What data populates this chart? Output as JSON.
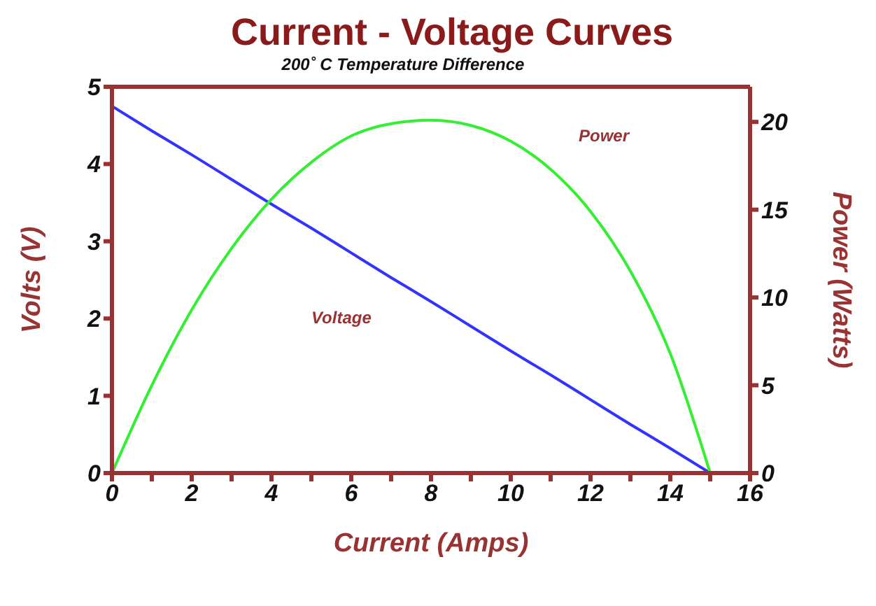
{
  "chart_data": {
    "type": "line",
    "title": "Current - Voltage Curves",
    "subtitle": "200˚ C Temperature Difference",
    "xlabel": "Current (Amps)",
    "ylabel": "Volts (V)",
    "y2label": "Power (Watts)",
    "x": [
      0,
      1,
      2,
      3,
      4,
      5,
      6,
      7,
      8,
      9,
      10,
      11,
      12,
      13,
      14,
      15
    ],
    "series": [
      {
        "name": "Voltage",
        "color": "#3333ff",
        "values": [
          4.75,
          4.43,
          4.12,
          3.8,
          3.48,
          3.17,
          2.85,
          2.53,
          2.22,
          1.9,
          1.58,
          1.27,
          0.95,
          0.63,
          0.32,
          0
        ]
      },
      {
        "name": "Power",
        "color": "#33ee33",
        "axis": "y2",
        "values": [
          0,
          5.0,
          9.3,
          12.8,
          15.6,
          17.7,
          19.2,
          19.9,
          20.1,
          19.8,
          18.9,
          17.3,
          14.9,
          11.5,
          6.8,
          0
        ]
      }
    ],
    "xlim": [
      0,
      16
    ],
    "xticks": [
      0,
      {
        "value": 1,
        "label": null
      },
      2,
      {
        "value": 3,
        "label": null
      },
      4,
      {
        "value": 5,
        "label": null
      },
      6,
      {
        "value": 7,
        "label": null
      },
      8,
      {
        "value": 9,
        "label": null
      },
      10,
      {
        "value": 11,
        "label": null
      },
      12,
      {
        "value": 13,
        "label": null
      },
      14,
      {
        "value": 15,
        "label": null
      },
      16
    ],
    "ylim": [
      0,
      5
    ],
    "yticks": [
      0,
      1,
      2,
      3,
      4,
      5
    ],
    "y2lim": [
      0,
      22
    ],
    "y2ticks": [
      0,
      5,
      10,
      15,
      20
    ],
    "grid": false,
    "marker": "none",
    "line_style": "solid"
  }
}
